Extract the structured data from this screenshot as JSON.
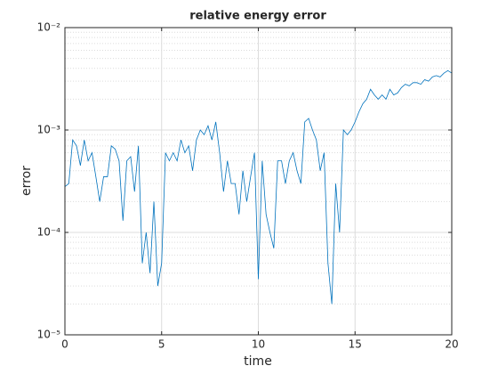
{
  "chart_data": {
    "type": "line",
    "title": "relative energy error",
    "xlabel": "time",
    "ylabel": "error",
    "x": [
      0,
      0.2,
      0.4,
      0.6,
      0.8,
      1,
      1.2,
      1.4,
      1.6,
      1.8,
      2,
      2.2,
      2.4,
      2.6,
      2.8,
      3,
      3.2,
      3.4,
      3.6,
      3.8,
      4,
      4.2,
      4.4,
      4.6,
      4.8,
      5,
      5.2,
      5.4,
      5.6,
      5.8,
      6,
      6.2,
      6.4,
      6.6,
      6.8,
      7,
      7.2,
      7.4,
      7.6,
      7.8,
      8,
      8.2,
      8.4,
      8.6,
      8.8,
      9,
      9.2,
      9.4,
      9.6,
      9.8,
      10,
      10.2,
      10.4,
      10.6,
      10.8,
      11,
      11.2,
      11.4,
      11.6,
      11.8,
      12,
      12.2,
      12.4,
      12.6,
      12.8,
      13,
      13.2,
      13.4,
      13.6,
      13.8,
      14,
      14.2,
      14.4,
      14.6,
      14.8,
      15,
      15.2,
      15.4,
      15.6,
      15.8,
      16,
      16.2,
      16.4,
      16.6,
      16.8,
      17,
      17.2,
      17.4,
      17.6,
      17.8,
      18,
      18.2,
      18.4,
      18.6,
      18.8,
      19,
      19.2,
      19.4,
      19.6,
      19.8,
      20
    ],
    "series": [
      {
        "name": "error",
        "color": "#0072bd",
        "values": [
          0.00028,
          0.0003,
          0.0008,
          0.0007,
          0.00045,
          0.0008,
          0.0005,
          0.0006,
          0.00035,
          0.0002,
          0.00035,
          0.00035,
          0.0007,
          0.00065,
          0.0005,
          0.00013,
          0.0005,
          0.00055,
          0.00025,
          0.0007,
          5e-05,
          0.0001,
          4e-05,
          0.0002,
          3e-05,
          5e-05,
          0.0006,
          0.0005,
          0.0006,
          0.0005,
          0.0008,
          0.0006,
          0.0007,
          0.0004,
          0.0008,
          0.001,
          0.0009,
          0.0011,
          0.0008,
          0.0012,
          0.0006,
          0.00025,
          0.0005,
          0.0003,
          0.0003,
          0.00015,
          0.0004,
          0.0002,
          0.00035,
          0.0006,
          3.5e-05,
          0.0005,
          0.00015,
          0.0001,
          7e-05,
          0.0005,
          0.0005,
          0.0003,
          0.0005,
          0.0006,
          0.0004,
          0.0003,
          0.0012,
          0.0013,
          0.001,
          0.0008,
          0.0004,
          0.0006,
          5e-05,
          2e-05,
          0.0003,
          0.0001,
          0.001,
          0.0009,
          0.001,
          0.0012,
          0.0015,
          0.0018,
          0.002,
          0.0025,
          0.0022,
          0.002,
          0.0022,
          0.002,
          0.0025,
          0.0022,
          0.0023,
          0.0026,
          0.0028,
          0.0027,
          0.0029,
          0.0029,
          0.0028,
          0.0031,
          0.003,
          0.0033,
          0.0034,
          0.0033,
          0.0036,
          0.0038,
          0.0036
        ]
      }
    ],
    "xlim": [
      0,
      20
    ],
    "xticks": [
      0,
      5,
      10,
      15,
      20
    ],
    "ylim": [
      1e-05,
      0.01
    ],
    "ylog": true,
    "yticks": [
      {
        "value": 1e-05,
        "label": "10⁻⁵"
      },
      {
        "value": 0.0001,
        "label": "10⁻⁴"
      },
      {
        "value": 0.001,
        "label": "10⁻³"
      },
      {
        "value": 0.01,
        "label": "10⁻²"
      }
    ],
    "grid": true
  }
}
